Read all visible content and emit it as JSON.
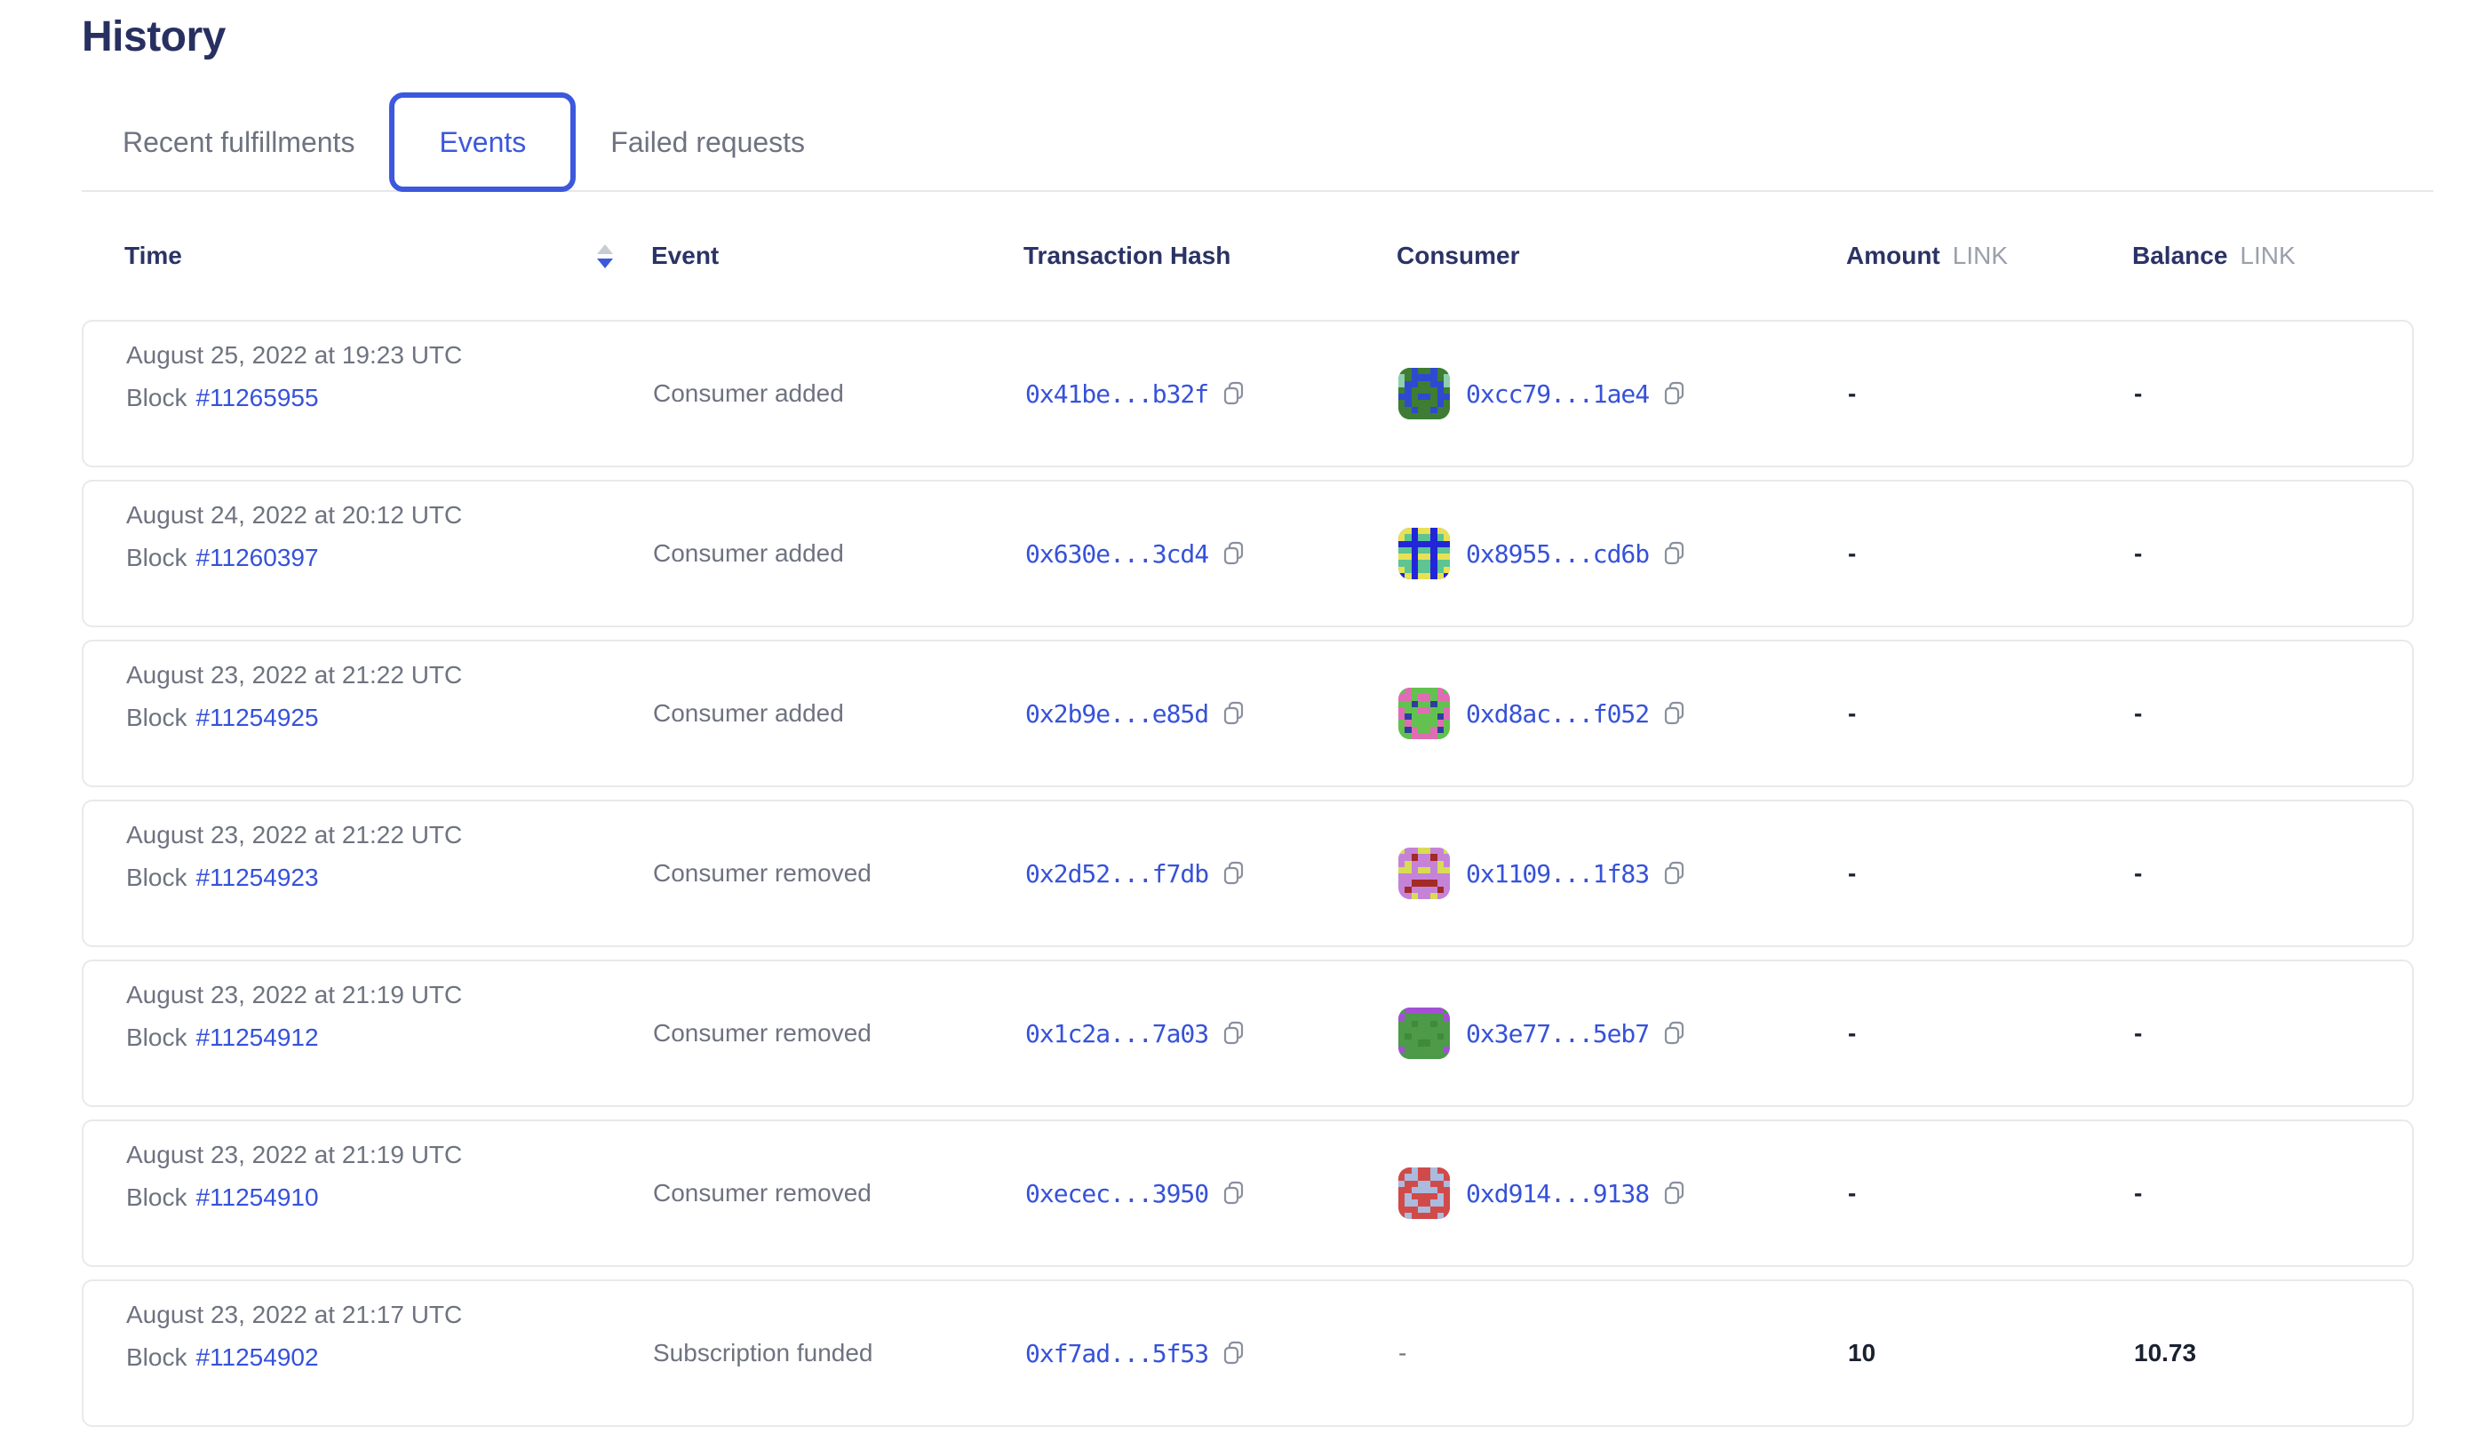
{
  "page": {
    "title": "History"
  },
  "tabs": [
    {
      "label": "Recent fulfillments",
      "active": false
    },
    {
      "label": "Events",
      "active": true
    },
    {
      "label": "Failed requests",
      "active": false
    }
  ],
  "icons": {
    "sort": "sort-carets-descending",
    "copy": "copy-to-clipboard",
    "identicon": "pixel-blockie-avatar"
  },
  "colors": {
    "accent_blue": "#3c58dc",
    "link_blue": "#3652d9",
    "heading_navy": "#2b3366",
    "text_gray": "#6e7380",
    "value_dark": "#1a2130",
    "unit_gray": "#99a0ab",
    "card_border": "#e9e9ec"
  },
  "table": {
    "columns": {
      "time": "Time",
      "event": "Event",
      "tx_hash": "Transaction Hash",
      "consumer": "Consumer",
      "amount": "Amount",
      "balance": "Balance",
      "link_unit": "LINK"
    },
    "sort": {
      "column": "Time",
      "direction": "descending"
    },
    "block_label": "Block",
    "empty_cell": "-",
    "rows": [
      {
        "date": "August 25, 2022 at 19:23 UTC",
        "block_number": "#11265955",
        "event": "Consumer added",
        "tx_hash": "0x41be...b32f",
        "consumer": {
          "address": "0xcc79...1ae4",
          "icon": {
            "palette": {
              "b": "#3e7d33",
              "c": "#2f49cf",
              "s": "#8fcfae"
            },
            "pixels": [
              "bbcbbcbb",
              "sbccccbs",
              "sccbbccs",
              "bcbbbbcb",
              "ccbccbcc",
              "bcbbbbcb",
              "bbcbbcbb",
              "bbbbbbbb"
            ]
          }
        },
        "amount": "-",
        "balance": "-"
      },
      {
        "date": "August 24, 2022 at 20:12 UTC",
        "block_number": "#11260397",
        "event": "Consumer added",
        "tx_hash": "0x630e...3cd4",
        "consumer": {
          "address": "0x8955...cd6b",
          "icon": {
            "palette": {
              "b": "#2326d8",
              "c": "#e9e154",
              "s": "#5dc492"
            },
            "pixels": [
              "ccbccbcc",
              "csbssbsc",
              "bbbbbbbb",
              "ssbssbss",
              "ccbccbcc",
              "ssbssbss",
              "csbssbsc",
              "bcbccbcb"
            ]
          }
        },
        "amount": "-",
        "balance": "-"
      },
      {
        "date": "August 23, 2022 at 21:22 UTC",
        "block_number": "#11254925",
        "event": "Consumer added",
        "tx_hash": "0x2b9e...e85d",
        "consumer": {
          "address": "0xd8ac...f052",
          "icon": {
            "palette": {
              "b": "#63c24f",
              "c": "#e06cb4",
              "s": "#2c3f9e"
            },
            "pixels": [
              "bcbbbbcb",
              "ccbccbcc",
              "bbsbbsbb",
              "cbbccbbc",
              "csbbbbsc",
              "bcbbbbcb",
              "bscbbcsb",
              "bbccccbb"
            ]
          }
        },
        "amount": "-",
        "balance": "-"
      },
      {
        "date": "August 23, 2022 at 21:22 UTC",
        "block_number": "#11254923",
        "event": "Consumer removed",
        "tx_hash": "0x2d52...f7db",
        "consumer": {
          "address": "0x1109...1f83",
          "icon": {
            "palette": {
              "b": "#c583d8",
              "c": "#d8dc52",
              "s": "#a32a25"
            },
            "pixels": [
              "cbbccbbc",
              "bbsbbsbb",
              "bcbbbbcb",
              "ccbccbcc",
              "bbbbbbbb",
              "bbssssbb",
              "bsbbbbsb",
              "bbcbbcbb"
            ]
          }
        },
        "amount": "-",
        "balance": "-"
      },
      {
        "date": "August 23, 2022 at 21:19 UTC",
        "block_number": "#11254912",
        "event": "Consumer removed",
        "tx_hash": "0x1c2a...7a03",
        "consumer": {
          "address": "0x3e77...5eb7",
          "icon": {
            "palette": {
              "b": "#4d9a49",
              "c": "#a44fd6",
              "s": "#3f8a3c"
            },
            "pixels": [
              "bccccccb",
              "cbbbbbbc",
              "bbsbbsbb",
              "bbbbbbbb",
              "bsbbbbsb",
              "bbbssbbb",
              "cbbbbbbc",
              "bbbbbbbb"
            ]
          }
        },
        "amount": "-",
        "balance": "-"
      },
      {
        "date": "August 23, 2022 at 21:19 UTC",
        "block_number": "#11254910",
        "event": "Consumer removed",
        "tx_hash": "0xecec...3950",
        "consumer": {
          "address": "0xd914...9138",
          "icon": {
            "palette": {
              "b": "#d14a4a",
              "c": "#aabbdd",
              "s": "#bc3d3d"
            },
            "pixels": [
              "bbcbbcbb",
              "bccbbccb",
              "cbbccbbc",
              "bbccccbb",
              "bcbbbbcb",
              "bccbbccb",
              "bbbccbbb",
              "bcbbbbcb"
            ]
          }
        },
        "amount": "-",
        "balance": "-"
      },
      {
        "date": "August 23, 2022 at 21:17 UTC",
        "block_number": "#11254902",
        "event": "Subscription funded",
        "tx_hash": "0xf7ad...5f53",
        "consumer": null,
        "amount": "10",
        "balance": "10.73"
      }
    ]
  }
}
